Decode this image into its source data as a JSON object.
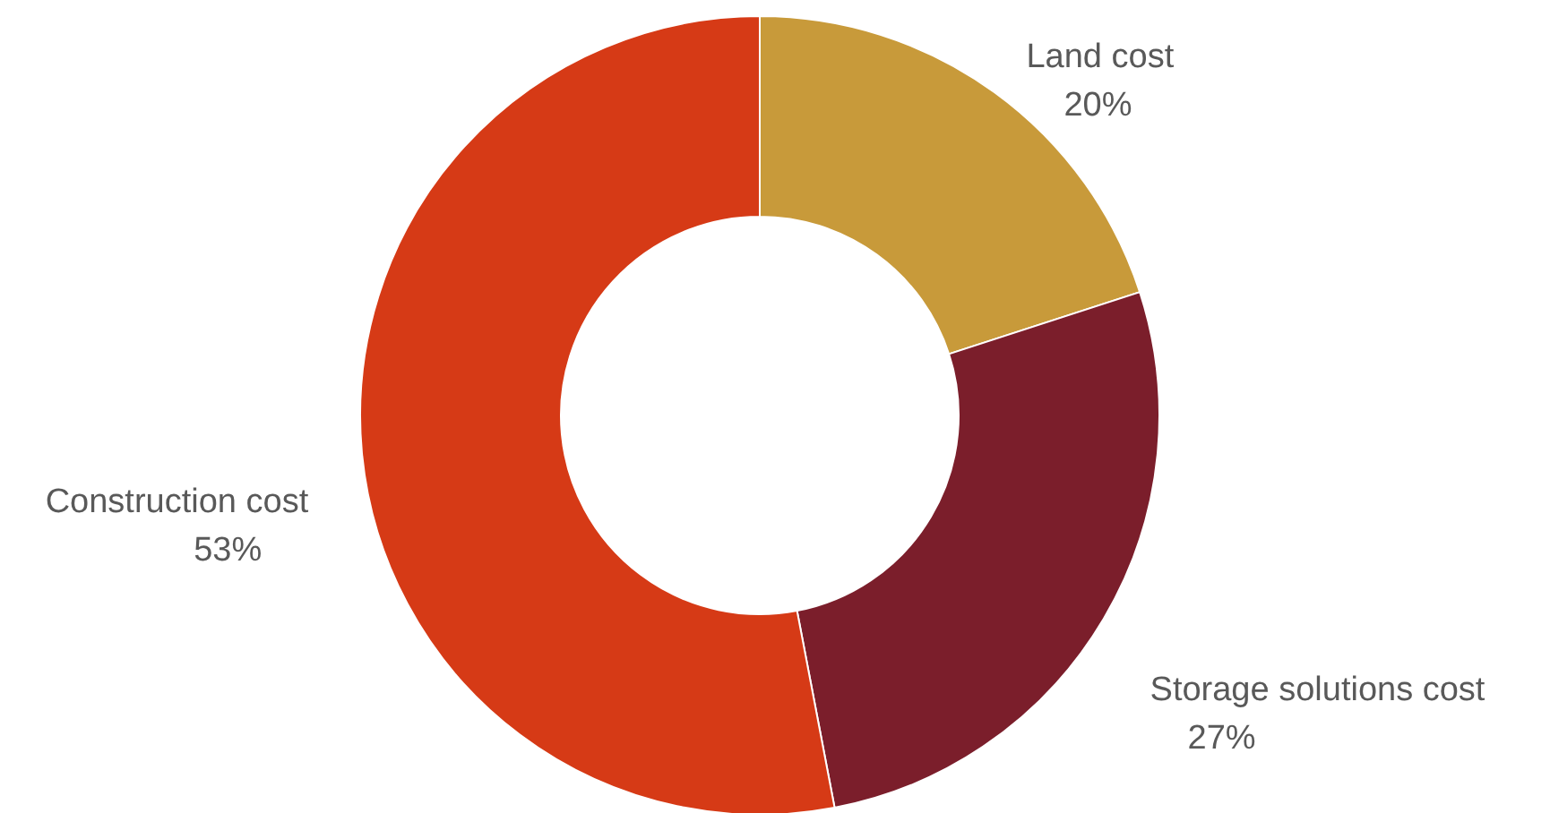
{
  "chart_data": {
    "type": "donut",
    "categories": [
      "Land cost",
      "Storage solutions cost",
      "Construction cost"
    ],
    "values": [
      20,
      27,
      53
    ],
    "colors": [
      "#c89a3a",
      "#7b1e2b",
      "#d63a16"
    ],
    "value_labels": [
      "20%",
      "27%",
      "53%"
    ],
    "legend": false
  }
}
